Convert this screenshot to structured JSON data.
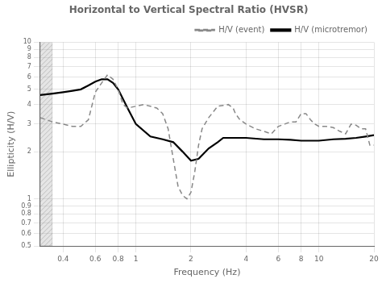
{
  "chart_data": {
    "type": "line",
    "title": "Horizontal to Vertical Spectral Ratio (HVSR)",
    "xlabel": "Frequency (Hz)",
    "ylabel": "Ellipticity (H/V)",
    "log": true,
    "grid": true,
    "legend": "upper right",
    "xlim": [
      0.3,
      20
    ],
    "ylim": [
      0.5,
      10
    ],
    "xticks": [
      0.4,
      0.6,
      0.8,
      1,
      2,
      4,
      6,
      8,
      10,
      20
    ],
    "yticks": [
      0.5,
      0.6,
      0.7,
      0.8,
      0.9,
      1,
      2,
      3,
      4,
      5,
      6,
      7,
      8,
      9,
      10
    ],
    "shaded_x_range": [
      0.3,
      0.35
    ],
    "series": [
      {
        "name": "H/V (event)",
        "color": "#888888",
        "line_style": "dashed",
        "x": [
          0.3,
          0.35,
          0.4,
          0.45,
          0.5,
          0.55,
          0.6,
          0.65,
          0.7,
          0.75,
          0.8,
          0.85,
          0.9,
          1.0,
          1.1,
          1.2,
          1.3,
          1.4,
          1.5,
          1.6,
          1.7,
          1.8,
          1.9,
          2.0,
          2.1,
          2.2,
          2.3,
          2.5,
          2.8,
          3.0,
          3.2,
          3.4,
          3.5,
          3.7,
          4.0,
          4.5,
          5.0,
          5.5,
          6.0,
          6.5,
          7.0,
          7.5,
          8.0,
          8.5,
          9.0,
          9.5,
          10.0,
          11.0,
          12.0,
          13.0,
          14.0,
          15.0,
          16.0,
          17.0,
          18.0,
          19.0,
          20.0
        ],
        "values": [
          3.3,
          3.1,
          3.0,
          2.9,
          2.9,
          3.2,
          4.8,
          5.5,
          6.2,
          5.8,
          5.0,
          4.0,
          3.8,
          3.9,
          4.0,
          3.9,
          3.8,
          3.5,
          2.8,
          1.8,
          1.2,
          1.05,
          1.0,
          1.1,
          1.5,
          2.2,
          2.8,
          3.3,
          3.9,
          3.95,
          4.0,
          3.8,
          3.5,
          3.2,
          3.0,
          2.8,
          2.7,
          2.6,
          2.9,
          3.0,
          3.1,
          3.1,
          3.5,
          3.5,
          3.2,
          3.0,
          2.9,
          2.9,
          2.85,
          2.7,
          2.6,
          3.0,
          2.95,
          2.8,
          2.8,
          2.2,
          2.2
        ]
      },
      {
        "name": "H/V (microtremor)",
        "color": "#000000",
        "line_style": "solid",
        "x": [
          0.3,
          0.35,
          0.4,
          0.45,
          0.5,
          0.55,
          0.6,
          0.65,
          0.7,
          0.75,
          0.8,
          0.9,
          1.0,
          1.2,
          1.4,
          1.6,
          1.8,
          2.0,
          2.2,
          2.5,
          2.8,
          3.0,
          3.5,
          4.0,
          5.0,
          6.0,
          7.0,
          8.0,
          9.0,
          10.0,
          12.0,
          14.0,
          16.0,
          18.0,
          20.0
        ],
        "values": [
          4.6,
          4.7,
          4.8,
          4.9,
          5.0,
          5.3,
          5.6,
          5.8,
          5.8,
          5.5,
          5.0,
          3.8,
          3.0,
          2.5,
          2.4,
          2.3,
          2.0,
          1.75,
          1.8,
          2.1,
          2.3,
          2.45,
          2.45,
          2.45,
          2.4,
          2.4,
          2.38,
          2.35,
          2.35,
          2.35,
          2.4,
          2.42,
          2.45,
          2.5,
          2.55
        ]
      }
    ]
  }
}
